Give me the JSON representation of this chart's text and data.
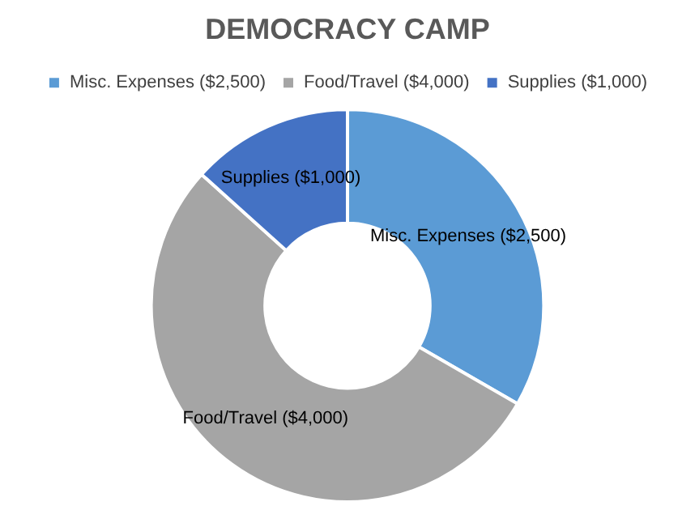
{
  "chart_data": {
    "type": "donut",
    "title": "DEMOCRACY CAMP",
    "categories": [
      "Misc. Expenses ($2,500)",
      "Food/Travel ($4,000)",
      "Supplies ($1,000)"
    ],
    "values": [
      2500,
      4000,
      1000
    ],
    "colors": [
      "#5b9bd5",
      "#a5a5a5",
      "#4472c4"
    ],
    "value_labels": [
      "Misc. Expenses ($2,500)",
      "Food/Travel ($4,000)",
      "Supplies ($1,000)"
    ],
    "legend": "top"
  }
}
